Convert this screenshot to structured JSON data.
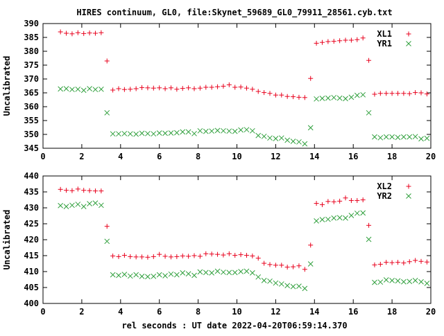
{
  "title": "HIRES continuum, GL0, file:Skynet_59689_GL0_79911_28561.cyb.txt",
  "xlabel": "rel seconds : UT date 2022-04-20T06:59:14.370",
  "colors": {
    "red": "#e8001c",
    "green": "#2f9f3c",
    "axis": "#000000",
    "text": "#000000"
  },
  "chart_data": [
    {
      "type": "scatter",
      "ylabel": "Uncalibrated",
      "xlim": [
        0,
        20
      ],
      "ylim": [
        345,
        390
      ],
      "xticks": [
        0,
        2,
        4,
        6,
        8,
        10,
        12,
        14,
        16,
        18,
        20
      ],
      "yticks": [
        345,
        350,
        355,
        360,
        365,
        370,
        375,
        380,
        385,
        390
      ],
      "grid": false,
      "legend": "top-right",
      "series": [
        {
          "name": "XL1",
          "marker": "plus",
          "color": "#e8001c",
          "x": [
            0.9,
            1.2,
            1.5,
            1.8,
            2.1,
            2.4,
            2.7,
            3.0,
            3.3,
            3.6,
            3.9,
            4.2,
            4.5,
            4.8,
            5.1,
            5.4,
            5.7,
            6.0,
            6.3,
            6.6,
            6.9,
            7.2,
            7.5,
            7.8,
            8.1,
            8.4,
            8.7,
            9.0,
            9.3,
            9.6,
            9.9,
            10.2,
            10.5,
            10.8,
            11.1,
            11.4,
            11.7,
            12.0,
            12.3,
            12.6,
            12.9,
            13.2,
            13.5,
            13.8,
            14.1,
            14.4,
            14.7,
            15.0,
            15.3,
            15.6,
            15.9,
            16.2,
            16.5,
            16.8,
            17.1,
            17.4,
            17.7,
            18.0,
            18.3,
            18.6,
            18.9,
            19.2,
            19.5,
            19.8
          ],
          "y": [
            387,
            386.5,
            386.3,
            386.7,
            386.4,
            386.6,
            386.5,
            386.7,
            376.5,
            366,
            366.5,
            366.2,
            366.3,
            366.5,
            366.9,
            366.8,
            366.7,
            366.8,
            366.5,
            366.8,
            366.3,
            366.6,
            366.8,
            366.5,
            366.7,
            367,
            367,
            367.2,
            367.4,
            367.9,
            367,
            367.1,
            366.7,
            366.3,
            365.5,
            365.1,
            364.8,
            364.2,
            364.2,
            363.7,
            363.6,
            363.4,
            363.3,
            370.2,
            382.9,
            383.2,
            383.5,
            383.6,
            383.8,
            384,
            384,
            384.2,
            384.8,
            376.7,
            364.5,
            364.8,
            364.8,
            364.8,
            364.8,
            364.8,
            364.7,
            365.1,
            365,
            364.6
          ]
        },
        {
          "name": "YR1",
          "marker": "cross",
          "color": "#2f9f3c",
          "x": [
            0.9,
            1.2,
            1.5,
            1.8,
            2.1,
            2.4,
            2.7,
            3.0,
            3.3,
            3.6,
            3.9,
            4.2,
            4.5,
            4.8,
            5.1,
            5.4,
            5.7,
            6.0,
            6.3,
            6.6,
            6.9,
            7.2,
            7.5,
            7.8,
            8.1,
            8.4,
            8.7,
            9.0,
            9.3,
            9.6,
            9.9,
            10.2,
            10.5,
            10.8,
            11.1,
            11.4,
            11.7,
            12.0,
            12.3,
            12.6,
            12.9,
            13.2,
            13.5,
            13.8,
            14.1,
            14.4,
            14.7,
            15.0,
            15.3,
            15.6,
            15.9,
            16.2,
            16.5,
            16.8,
            17.1,
            17.4,
            17.7,
            18.0,
            18.3,
            18.6,
            18.9,
            19.2,
            19.5,
            19.8
          ],
          "y": [
            366.4,
            366.5,
            366.2,
            366.3,
            365.9,
            366.5,
            366.2,
            366.3,
            357.8,
            350.2,
            350.2,
            350.3,
            350.2,
            350.1,
            350.4,
            350.3,
            350.2,
            350.5,
            350.4,
            350.5,
            350.6,
            350.9,
            350.9,
            350.3,
            351.3,
            351.1,
            351.2,
            351.4,
            351.3,
            351.2,
            351.1,
            351.6,
            351.7,
            351.3,
            349.6,
            349.3,
            348.7,
            348.5,
            348.7,
            347.9,
            347.5,
            347.3,
            346.6,
            352.4,
            362.8,
            363,
            363.1,
            363.3,
            363.1,
            362.9,
            363.4,
            364.1,
            364.3,
            357.8,
            349.1,
            348.8,
            349.1,
            349.1,
            348.9,
            349.1,
            349.1,
            349.2,
            348.4,
            348.6
          ]
        }
      ]
    },
    {
      "type": "scatter",
      "ylabel": "Uncalibrated",
      "xlim": [
        0,
        20
      ],
      "ylim": [
        400,
        440
      ],
      "xticks": [
        0,
        2,
        4,
        6,
        8,
        10,
        12,
        14,
        16,
        18,
        20
      ],
      "yticks": [
        400,
        405,
        410,
        415,
        420,
        425,
        430,
        435,
        440
      ],
      "grid": false,
      "legend": "top-right",
      "series": [
        {
          "name": "XL2",
          "marker": "plus",
          "color": "#e8001c",
          "x": [
            0.9,
            1.2,
            1.5,
            1.8,
            2.1,
            2.4,
            2.7,
            3.0,
            3.3,
            3.6,
            3.9,
            4.2,
            4.5,
            4.8,
            5.1,
            5.4,
            5.7,
            6.0,
            6.3,
            6.6,
            6.9,
            7.2,
            7.5,
            7.8,
            8.1,
            8.4,
            8.7,
            9.0,
            9.3,
            9.6,
            9.9,
            10.2,
            10.5,
            10.8,
            11.1,
            11.4,
            11.7,
            12.0,
            12.3,
            12.6,
            12.9,
            13.2,
            13.5,
            13.8,
            14.1,
            14.4,
            14.7,
            15.0,
            15.3,
            15.6,
            15.9,
            16.2,
            16.5,
            16.8,
            17.1,
            17.4,
            17.7,
            18.0,
            18.3,
            18.6,
            18.9,
            19.2,
            19.5,
            19.8
          ],
          "y": [
            435.8,
            435.5,
            435.4,
            435.9,
            435.5,
            435.4,
            435.3,
            435.3,
            424.2,
            414.9,
            414.7,
            415.1,
            414.7,
            414.6,
            414.6,
            414.5,
            414.7,
            415.4,
            414.8,
            414.6,
            414.7,
            414.9,
            414.8,
            415,
            414.8,
            415.6,
            415.5,
            415.4,
            415.2,
            415.6,
            415.1,
            415.3,
            415.1,
            414.9,
            414.2,
            412.6,
            412.2,
            412,
            412,
            411.4,
            411.5,
            411.8,
            410.7,
            418.3,
            431.4,
            431,
            432,
            431.9,
            432.1,
            433.1,
            432.3,
            432.3,
            432.5,
            424.5,
            412.1,
            412.3,
            412.9,
            412.8,
            412.9,
            412.7,
            413.1,
            413.5,
            413.2,
            413
          ]
        },
        {
          "name": "YR2",
          "marker": "cross",
          "color": "#2f9f3c",
          "x": [
            0.9,
            1.2,
            1.5,
            1.8,
            2.1,
            2.4,
            2.7,
            3.0,
            3.3,
            3.6,
            3.9,
            4.2,
            4.5,
            4.8,
            5.1,
            5.4,
            5.7,
            6.0,
            6.3,
            6.6,
            6.9,
            7.2,
            7.5,
            7.8,
            8.1,
            8.4,
            8.7,
            9.0,
            9.3,
            9.6,
            9.9,
            10.2,
            10.5,
            10.8,
            11.1,
            11.4,
            11.7,
            12.0,
            12.3,
            12.6,
            12.9,
            13.2,
            13.5,
            13.8,
            14.1,
            14.4,
            14.7,
            15.0,
            15.3,
            15.6,
            15.9,
            16.2,
            16.5,
            16.8,
            17.1,
            17.4,
            17.7,
            18.0,
            18.3,
            18.6,
            18.9,
            19.2,
            19.5,
            19.8
          ],
          "y": [
            430.7,
            430.4,
            430.8,
            431.1,
            430.4,
            431.3,
            431.5,
            430.8,
            419.5,
            409,
            408.8,
            409.1,
            408.6,
            409,
            408.5,
            408.4,
            408.5,
            409,
            408.7,
            409.2,
            409,
            409.6,
            409.3,
            408.8,
            409.9,
            409.7,
            409.6,
            410.1,
            409.8,
            409.7,
            409.7,
            410,
            410.1,
            409.6,
            408.3,
            407.2,
            407,
            406.4,
            406.1,
            405.6,
            405.3,
            405.4,
            404.7,
            412.4,
            425.9,
            426.3,
            426.4,
            426.8,
            426.9,
            426.8,
            427.6,
            428.3,
            428.4,
            420.1,
            406.6,
            406.7,
            407.4,
            407.2,
            407.1,
            406.8,
            406.9,
            407.2,
            406.8,
            406.3
          ]
        }
      ]
    }
  ]
}
